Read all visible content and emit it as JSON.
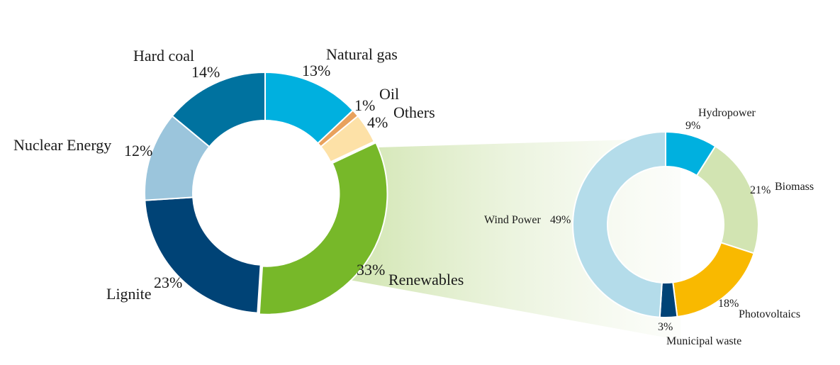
{
  "chart_data": [
    {
      "type": "pie",
      "donut": true,
      "title": "",
      "slices": [
        {
          "label": "Natural gas",
          "value": 13,
          "pct_label": "13%",
          "color": "#00B0DF"
        },
        {
          "label": "Oil",
          "value": 1,
          "pct_label": "1%",
          "color": "#E8A15C"
        },
        {
          "label": "Others",
          "value": 4,
          "pct_label": "4%",
          "color": "#FDE1A7"
        },
        {
          "label": "Renewables",
          "value": 33,
          "pct_label": "33%",
          "color": "#77B829"
        },
        {
          "label": "Lignite",
          "value": 23,
          "pct_label": "23%",
          "color": "#004376"
        },
        {
          "label": "Nuclear Energy",
          "value": 12,
          "pct_label": "12%",
          "color": "#9BC5DC"
        },
        {
          "label": "Hard coal",
          "value": 14,
          "pct_label": "14%",
          "color": "#00729F"
        }
      ],
      "exploded_slice": "Renewables",
      "legend": "none"
    },
    {
      "type": "pie",
      "donut": true,
      "title": "",
      "slices": [
        {
          "label": "Hydropower",
          "value": 9,
          "pct_label": "9%",
          "color": "#00B0DF"
        },
        {
          "label": "Biomass",
          "value": 21,
          "pct_label": "21%",
          "color": "#D2E4B2"
        },
        {
          "label": "Photovoltaics",
          "value": 18,
          "pct_label": "18%",
          "color": "#F9B900"
        },
        {
          "label": "Municipal waste",
          "value": 3,
          "pct_label": "3%",
          "color": "#004376"
        },
        {
          "label": "Wind Power",
          "value": 49,
          "pct_label": "49%",
          "color": "#B4DCEA"
        }
      ],
      "legend": "none"
    }
  ]
}
